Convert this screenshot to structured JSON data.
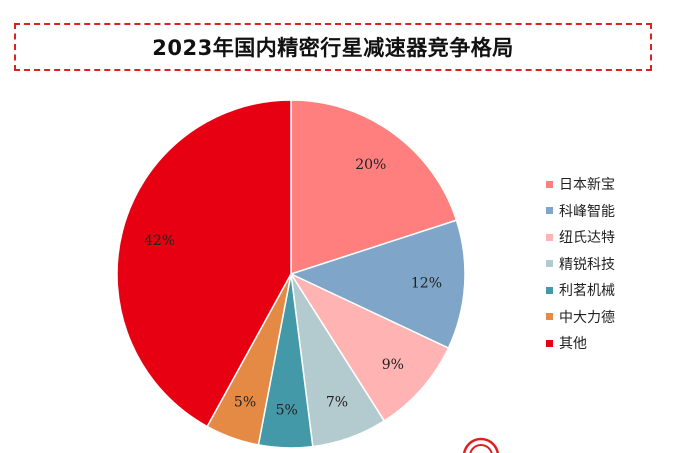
{
  "title": "2023年国内精密行星减速器竞争格局",
  "chart_data": {
    "type": "pie",
    "title": "2023年国内精密行星减速器竞争格局",
    "start_angle_deg": 0,
    "direction": "clockwise",
    "legend_position": "right",
    "slices": [
      {
        "label": "日本新宝",
        "value": 20,
        "display": "20%",
        "color": "#ff7f7f"
      },
      {
        "label": "科峰智能",
        "value": 12,
        "display": "12%",
        "color": "#7fa6c9"
      },
      {
        "label": "纽氏达特",
        "value": 9,
        "display": "9%",
        "color": "#ffb3b3"
      },
      {
        "label": "精锐科技",
        "value": 7,
        "display": "7%",
        "color": "#b3cace"
      },
      {
        "label": "利茗机械",
        "value": 5,
        "display": "5%",
        "color": "#4399a8"
      },
      {
        "label": "中大力德",
        "value": 5,
        "display": "5%",
        "color": "#e58a45"
      },
      {
        "label": "其他",
        "value": 42,
        "display": "42%",
        "color": "#e60012"
      }
    ]
  }
}
